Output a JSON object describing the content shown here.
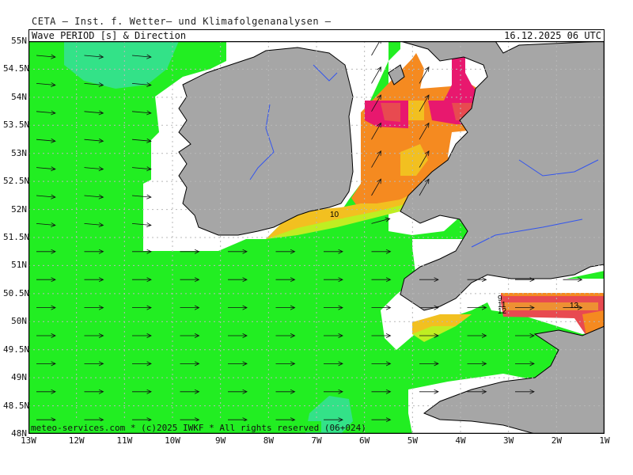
{
  "header": {
    "institute": "CETA — Inst. f. Wetter— und Klimafolgenanalysen —",
    "title": "Wave PERIOD [s] & Direction",
    "datetime": "16.12.2025 06 UTC"
  },
  "footer": "meteo-services.com * (c)2025 IWKF * All rights reserved (06+024)",
  "axes": {
    "lat_labels": [
      "55N",
      "54.5N",
      "54N",
      "53.5N",
      "53N",
      "52.5N",
      "52N",
      "51.5N",
      "51N",
      "50.5N",
      "50N",
      "49.5N",
      "49N",
      "48.5N",
      "48N"
    ],
    "lon_labels": [
      "13W",
      "12W",
      "11W",
      "10W",
      "9W",
      "8W",
      "7W",
      "6W",
      "5W",
      "4W",
      "3W",
      "2W",
      "1W"
    ]
  },
  "contour_labels": [
    "10",
    "12",
    "13",
    "11",
    "9"
  ],
  "colors": {
    "period_8_9": "#22ee22",
    "period_9_10": "#bfee22",
    "period_10_11": "#f2c020",
    "period_11_12": "#f58a20",
    "period_12_13": "#e84a50",
    "period_13_plus": "#e8186e",
    "land": "#a6a6a6",
    "low_period_area": "#33e288"
  }
}
